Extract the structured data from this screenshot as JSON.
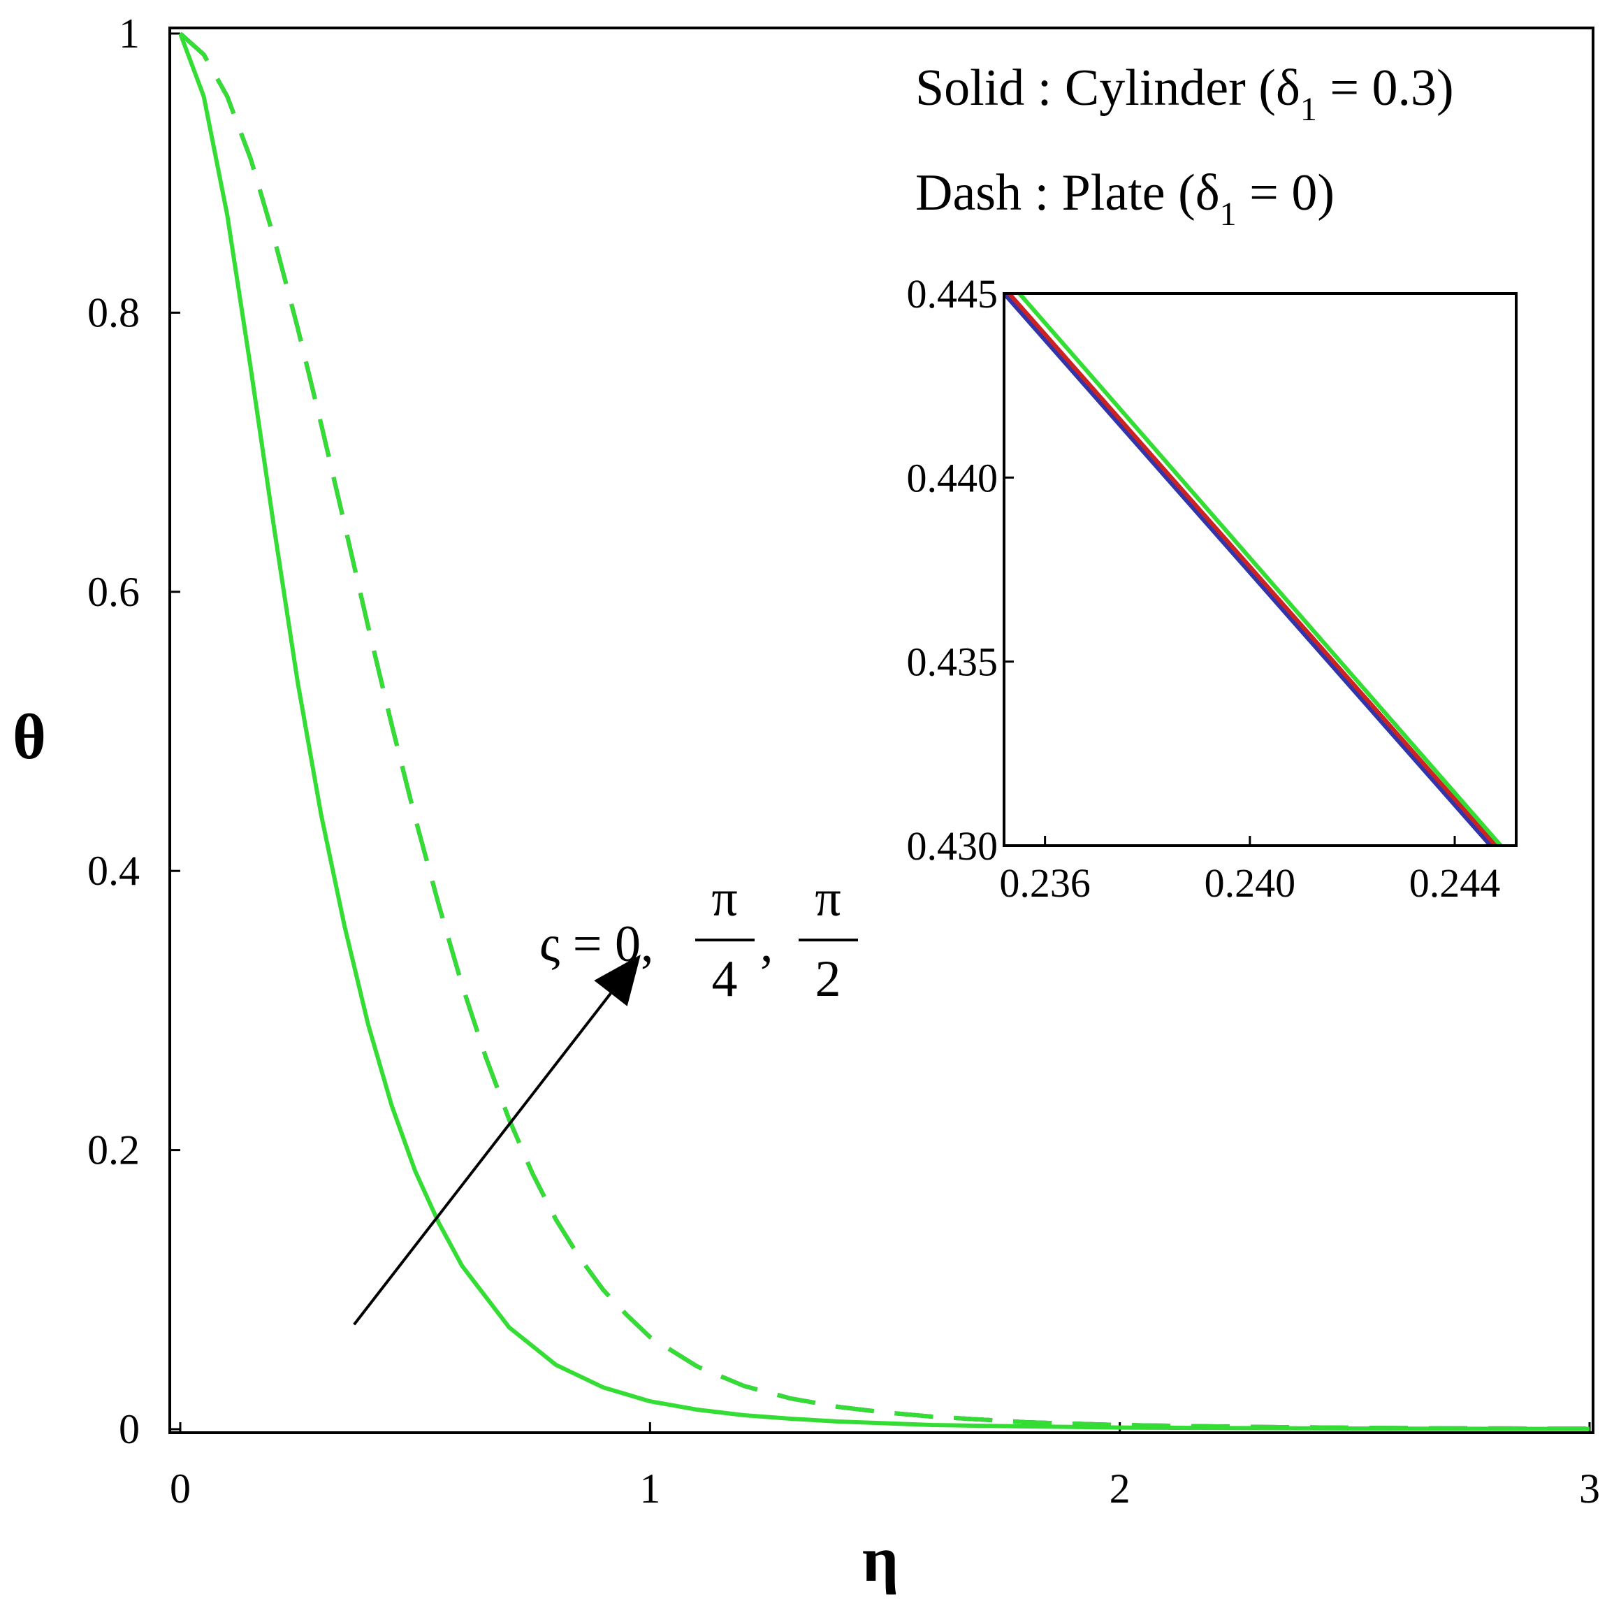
{
  "chart_data": [
    {
      "type": "line",
      "title": "",
      "xlabel": "η",
      "ylabel": "θ",
      "xlim": [
        0,
        3
      ],
      "ylim": [
        0,
        1
      ],
      "x_ticks": [
        "0",
        "1",
        "2",
        "3"
      ],
      "y_ticks": [
        "0",
        "0.2",
        "0.4",
        "0.6",
        "0.8",
        "1"
      ],
      "grid": false,
      "legend": {
        "placement": "top-right",
        "entries": [
          {
            "style": "solid",
            "text": "Solid : Cylinder (δ",
            "sub": "1",
            "tail": " = 0.3)"
          },
          {
            "style": "dashed",
            "text": "Dash : Plate (δ",
            "sub": "1",
            "tail": " = 0)"
          }
        ]
      },
      "annotation": {
        "text": "ς = 0, ",
        "fractions": [
          {
            "num": "π",
            "den": "4"
          },
          {
            "num": "π",
            "den": "2"
          }
        ],
        "separator": ", ",
        "arrow_from": [
          0.37,
          0.075
        ],
        "arrow_to": [
          0.98,
          0.34
        ]
      },
      "series": [
        {
          "group": "cylinder",
          "style": "solid",
          "color": "#33dd33",
          "x": [
            0,
            0.05,
            0.1,
            0.15,
            0.2,
            0.25,
            0.3,
            0.35,
            0.4,
            0.45,
            0.5,
            0.55,
            0.6,
            0.7,
            0.8,
            0.9,
            1.0,
            1.1,
            1.2,
            1.3,
            1.4,
            1.6,
            1.8,
            2.0,
            2.25,
            2.5,
            2.75,
            3.0
          ],
          "y": [
            1,
            0.955,
            0.87,
            0.76,
            0.645,
            0.535,
            0.44,
            0.36,
            0.29,
            0.232,
            0.185,
            0.148,
            0.117,
            0.073,
            0.046,
            0.03,
            0.02,
            0.014,
            0.01,
            0.0075,
            0.0055,
            0.003,
            0.002,
            0.0012,
            0.0008,
            0.0005,
            0.0003,
            0.0002
          ]
        },
        {
          "group": "plate",
          "style": "dashed",
          "color": "#cc2222",
          "x": [
            0,
            0.05,
            0.1,
            0.15,
            0.2,
            0.25,
            0.3,
            0.35,
            0.4,
            0.45,
            0.5,
            0.55,
            0.6,
            0.65,
            0.7,
            0.75,
            0.8,
            0.85,
            0.9,
            0.95,
            1.0,
            1.1,
            1.2,
            1.3,
            1.4,
            1.5,
            1.6,
            1.8,
            2.0,
            2.25,
            2.5,
            2.75,
            3.0
          ],
          "y": [
            1,
            0.985,
            0.955,
            0.91,
            0.853,
            0.789,
            0.72,
            0.648,
            0.575,
            0.505,
            0.438,
            0.376,
            0.318,
            0.267,
            0.222,
            0.183,
            0.15,
            0.123,
            0.1,
            0.082,
            0.066,
            0.045,
            0.031,
            0.022,
            0.016,
            0.012,
            0.009,
            0.005,
            0.003,
            0.0018,
            0.001,
            0.0006,
            0.0004
          ]
        },
        {
          "group": "plate",
          "style": "dashed",
          "color": "#3366cc",
          "x": [
            0,
            0.05,
            0.1,
            0.15,
            0.2,
            0.25,
            0.3,
            0.35,
            0.4,
            0.45,
            0.5,
            0.55,
            0.6,
            0.65,
            0.7,
            0.75,
            0.8,
            0.85,
            0.9,
            0.95,
            1.0,
            1.1,
            1.2,
            1.3,
            1.4,
            1.5,
            1.6,
            1.8,
            2.0,
            2.25,
            2.5,
            2.75,
            3.0
          ],
          "y": [
            1,
            0.985,
            0.955,
            0.91,
            0.853,
            0.789,
            0.72,
            0.648,
            0.575,
            0.505,
            0.438,
            0.376,
            0.318,
            0.267,
            0.222,
            0.183,
            0.15,
            0.123,
            0.1,
            0.082,
            0.066,
            0.045,
            0.031,
            0.022,
            0.016,
            0.012,
            0.009,
            0.005,
            0.003,
            0.0018,
            0.001,
            0.0006,
            0.0004
          ]
        },
        {
          "group": "plate",
          "style": "dashed",
          "color": "#33dd33",
          "x": [
            0,
            0.05,
            0.1,
            0.15,
            0.2,
            0.25,
            0.3,
            0.35,
            0.4,
            0.45,
            0.5,
            0.55,
            0.6,
            0.65,
            0.7,
            0.75,
            0.8,
            0.85,
            0.9,
            0.95,
            1.0,
            1.1,
            1.2,
            1.3,
            1.4,
            1.5,
            1.6,
            1.8,
            2.0,
            2.25,
            2.5,
            2.75,
            3.0
          ],
          "y": [
            1,
            0.985,
            0.955,
            0.91,
            0.853,
            0.789,
            0.72,
            0.648,
            0.575,
            0.505,
            0.438,
            0.376,
            0.318,
            0.267,
            0.222,
            0.183,
            0.15,
            0.123,
            0.1,
            0.082,
            0.066,
            0.045,
            0.031,
            0.022,
            0.016,
            0.012,
            0.009,
            0.005,
            0.003,
            0.0018,
            0.001,
            0.0006,
            0.0004
          ]
        }
      ]
    },
    {
      "type": "line",
      "role": "inset",
      "title": "",
      "xlabel": "",
      "ylabel": "",
      "xlim": [
        0.2352,
        0.2452
      ],
      "ylim": [
        0.43,
        0.445
      ],
      "x_tick_values": [
        0.236,
        0.24,
        0.244
      ],
      "x_ticks": [
        "0.236",
        "0.240",
        "0.244"
      ],
      "y_tick_values": [
        0.43,
        0.435,
        0.44,
        0.445
      ],
      "y_ticks": [
        "0.430",
        "0.435",
        "0.440",
        "0.445"
      ],
      "grid": false,
      "series": [
        {
          "color": "#3333aa",
          "x": [
            0.2352,
            0.2447
          ],
          "y": [
            0.445,
            0.43
          ]
        },
        {
          "color": "#cc2222",
          "x": [
            0.2353,
            0.2448
          ],
          "y": [
            0.445,
            0.43
          ]
        },
        {
          "color": "#33dd33",
          "x": [
            0.2355,
            0.2449
          ],
          "y": [
            0.445,
            0.43
          ]
        }
      ]
    }
  ]
}
